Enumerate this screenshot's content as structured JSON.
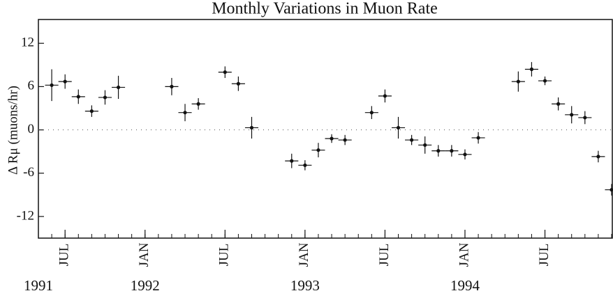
{
  "chart_data": {
    "type": "errorbar",
    "title": "Monthly Variations in Muon Rate",
    "y_label": "Δ Rμ (muons/hr)",
    "x": [
      "1991-06",
      "1991-07",
      "1991-08",
      "1991-09",
      "1991-10",
      "1991-11",
      "1992-03",
      "1992-04",
      "1992-05",
      "1992-07",
      "1992-08",
      "1992-09",
      "1992-12",
      "1993-01",
      "1993-02",
      "1993-03",
      "1993-04",
      "1993-06",
      "1993-07",
      "1993-08",
      "1993-09",
      "1993-10",
      "1993-11",
      "1993-12",
      "1994-01",
      "1994-02",
      "1994-05",
      "1994-06",
      "1994-07",
      "1994-08",
      "1994-09",
      "1994-10",
      "1994-11",
      "1994-12"
    ],
    "values": [
      6.2,
      6.7,
      4.6,
      2.6,
      4.5,
      5.9,
      6.0,
      2.4,
      3.6,
      8.0,
      6.4,
      0.3,
      -4.3,
      -4.9,
      -2.8,
      -1.2,
      -1.4,
      2.4,
      4.7,
      0.3,
      -1.4,
      -2.1,
      -2.9,
      -2.9,
      -3.4,
      -1.1,
      6.7,
      8.4,
      6.8,
      3.6,
      2.1,
      1.7,
      -3.7,
      -8.3
    ],
    "errors": [
      2.2,
      1.0,
      1.0,
      0.8,
      1.0,
      1.6,
      1.2,
      1.2,
      0.8,
      0.8,
      1.0,
      1.5,
      1.0,
      0.7,
      1.0,
      0.6,
      0.7,
      0.9,
      0.9,
      1.5,
      0.7,
      1.2,
      0.8,
      0.8,
      0.7,
      0.8,
      1.4,
      1.0,
      0.6,
      0.9,
      1.2,
      0.9,
      0.8,
      0.8
    ],
    "color": "#111111",
    "xlim": [
      "1991-05",
      "1994-12"
    ],
    "ylim": [
      -15,
      15.3
    ],
    "yticks": [
      12,
      6,
      0,
      -6,
      -12
    ],
    "xticks": [
      {
        "value": "1991-07",
        "label": "JUL"
      },
      {
        "value": "1992-01",
        "label": "JAN"
      },
      {
        "value": "1992-07",
        "label": "JUL"
      },
      {
        "value": "1993-01",
        "label": "JAN"
      },
      {
        "value": "1993-07",
        "label": "JUL"
      },
      {
        "value": "1994-01",
        "label": "JAN"
      },
      {
        "value": "1994-07",
        "label": "JUL"
      }
    ],
    "year_labels": [
      {
        "value": "1991-05",
        "label": "1991"
      },
      {
        "value": "1992-01",
        "label": "1992"
      },
      {
        "value": "1993-01",
        "label": "1993"
      },
      {
        "value": "1994-01",
        "label": "1994"
      }
    ],
    "zero_line": true
  }
}
